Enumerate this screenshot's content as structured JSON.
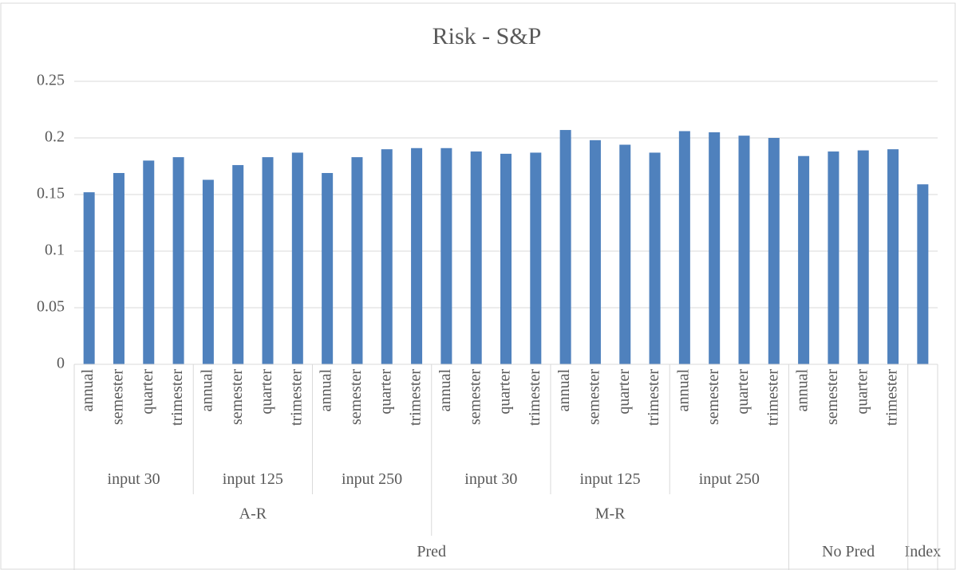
{
  "chart_data": {
    "type": "bar",
    "title": "Risk - S&P",
    "category_levels": [
      [
        "annual",
        "semester",
        "quarter",
        "trimester",
        "annual",
        "semester",
        "quarter",
        "trimester",
        "annual",
        "semester",
        "quarter",
        "trimester",
        "annual",
        "semester",
        "quarter",
        "trimester",
        "annual",
        "semester",
        "quarter",
        "trimester",
        "annual",
        "semester",
        "quarter",
        "trimester",
        "annual",
        "semester",
        "quarter",
        "trimester",
        null
      ],
      [
        "input 30",
        "input 30",
        "input 30",
        "input 30",
        "input 125",
        "input 125",
        "input 125",
        "input 125",
        "input 250",
        "input 250",
        "input 250",
        "input 250",
        "input 30",
        "input 30",
        "input 30",
        "input 30",
        "input 125",
        "input 125",
        "input 125",
        "input 125",
        "input 250",
        "input 250",
        "input 250",
        "input 250",
        null,
        null,
        null,
        null,
        null
      ],
      [
        "A-R",
        "A-R",
        "A-R",
        "A-R",
        "A-R",
        "A-R",
        "A-R",
        "A-R",
        "A-R",
        "A-R",
        "A-R",
        "A-R",
        "M-R",
        "M-R",
        "M-R",
        "M-R",
        "M-R",
        "M-R",
        "M-R",
        "M-R",
        "M-R",
        "M-R",
        "M-R",
        "M-R",
        null,
        null,
        null,
        null,
        null
      ],
      [
        "Pred",
        "Pred",
        "Pred",
        "Pred",
        "Pred",
        "Pred",
        "Pred",
        "Pred",
        "Pred",
        "Pred",
        "Pred",
        "Pred",
        "Pred",
        "Pred",
        "Pred",
        "Pred",
        "Pred",
        "Pred",
        "Pred",
        "Pred",
        "Pred",
        "Pred",
        "Pred",
        "Pred",
        "No Pred",
        "No Pred",
        "No Pred",
        "No Pred",
        "Index"
      ]
    ],
    "values": [
      0.152,
      0.169,
      0.18,
      0.183,
      0.163,
      0.176,
      0.183,
      0.187,
      0.169,
      0.183,
      0.19,
      0.191,
      0.191,
      0.188,
      0.186,
      0.187,
      0.207,
      0.198,
      0.194,
      0.187,
      0.206,
      0.205,
      0.202,
      0.2,
      0.184,
      0.188,
      0.189,
      0.19,
      0.159
    ],
    "color": "#4f81bd",
    "ylim": [
      0,
      0.25
    ],
    "yticks": [
      0,
      0.05,
      0.1,
      0.15,
      0.2,
      0.25
    ],
    "grid": true
  }
}
